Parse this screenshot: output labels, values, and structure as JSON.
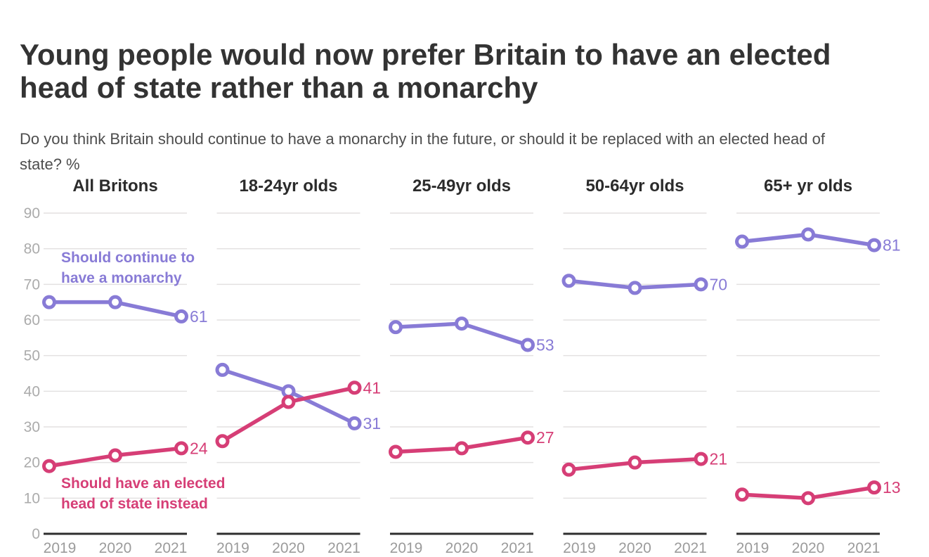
{
  "header": {
    "title": "Young people would now prefer Britain to have an elected head of state rather than a monarchy",
    "subtitle": "Do you think Britain should continue to have a monarchy in the future, or should it be replaced with an elected head of state? %"
  },
  "annotations": {
    "monarchy": [
      "Should continue to",
      "have a monarchy"
    ],
    "elected": [
      "Should have an elected",
      "head of state instead"
    ]
  },
  "colors": {
    "monarchy": "#887BD6",
    "elected": "#D63E76",
    "grid": "#E3E1E1",
    "baseline": "#2E2E2E",
    "y_tick_text": "#ABABAB",
    "x_tick_text": "#9B9B9B",
    "title_text": "#333333",
    "subtitle_text": "#4D4D4D",
    "panel_title": "#2B2B2B"
  },
  "chart_data": {
    "type": "line",
    "x_categories": [
      "2019",
      "2020",
      "2021"
    ],
    "ylim": [
      0,
      90
    ],
    "yticks": [
      0,
      10,
      20,
      30,
      40,
      50,
      60,
      70,
      80,
      90
    ],
    "grid": true,
    "legend_position": "inline-annotations",
    "series_names": [
      "Should continue to have a monarchy",
      "Should have an elected head of state instead"
    ],
    "panels": [
      {
        "title": "All Britons",
        "monarchy": [
          65,
          65,
          61
        ],
        "elected": [
          19,
          22,
          24
        ],
        "monarchy_end_label": "61",
        "elected_end_label": "24"
      },
      {
        "title": "18-24yr olds",
        "monarchy": [
          46,
          40,
          31
        ],
        "elected": [
          26,
          37,
          41
        ],
        "monarchy_end_label": "31",
        "elected_end_label": "41"
      },
      {
        "title": "25-49yr olds",
        "monarchy": [
          58,
          59,
          53
        ],
        "elected": [
          23,
          24,
          27
        ],
        "monarchy_end_label": "53",
        "elected_end_label": "27"
      },
      {
        "title": "50-64yr olds",
        "monarchy": [
          71,
          69,
          70
        ],
        "elected": [
          18,
          20,
          21
        ],
        "monarchy_end_label": "70",
        "elected_end_label": "21"
      },
      {
        "title": "65+ yr olds",
        "monarchy": [
          82,
          84,
          81
        ],
        "elected": [
          11,
          10,
          13
        ],
        "monarchy_end_label": "81",
        "elected_end_label": "13"
      }
    ]
  }
}
